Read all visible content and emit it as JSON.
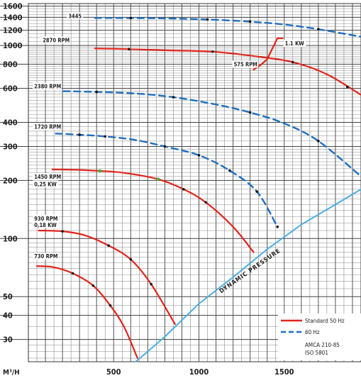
{
  "chart_data": {
    "type": "line",
    "title": "",
    "xlabel": "M³/H",
    "ylabel": "",
    "x_scale": "linear",
    "y_scale": "log",
    "xlim": [
      0,
      1950
    ],
    "ylim": [
      23,
      1650
    ],
    "x_ticks": [
      500,
      1000,
      1500
    ],
    "y_ticks": [
      30,
      40,
      50,
      100,
      200,
      300,
      400,
      600,
      800,
      1000,
      1200,
      1400,
      1600
    ],
    "grid": true,
    "legend_position": "bottom-right",
    "legend": [
      {
        "label": "Standard 50 Hz",
        "style": "solid",
        "color": "#e1251b"
      },
      {
        "label": "60 Hz",
        "style": "dashed",
        "color": "#1f6fbf"
      },
      {
        "label": "AMCA 210-85",
        "style": "text",
        "color": "#333333"
      },
      {
        "label": "ISO 5801",
        "style": "text",
        "color": "#333333"
      }
    ],
    "colors": {
      "standard": "#e1251b",
      "sixty_hz": "#1f6fbf",
      "dynamic": "#4aaee0",
      "point_dark": "#111111",
      "point_green": "#47b23a"
    },
    "series": [
      {
        "label": "3445",
        "style": "dashed",
        "color": "#1f6fbf",
        "x": [
          390,
          580,
          800,
          1050,
          1300,
          1500,
          1700,
          1950
        ],
        "y": [
          1390,
          1388,
          1382,
          1365,
          1330,
          1285,
          1215,
          1110
        ]
      },
      {
        "label": "2870 RPM",
        "style": "solid",
        "color": "#e1251b",
        "x": [
          390,
          590,
          800,
          1080,
          1330,
          1550,
          1750,
          1950
        ],
        "y": [
          965,
          958,
          945,
          930,
          880,
          820,
          710,
          555
        ]
      },
      {
        "label": "2380 RPM",
        "style": "dashed",
        "color": "#1f6fbf",
        "x": [
          205,
          400,
          620,
          850,
          1100,
          1300,
          1500,
          1700,
          1950
        ],
        "y": [
          580,
          575,
          565,
          540,
          495,
          450,
          395,
          320,
          210
        ]
      },
      {
        "label": "1720 RPM",
        "style": "dashed",
        "color": "#1f6fbf",
        "x": [
          160,
          300,
          450,
          620,
          800,
          1000,
          1180,
          1340,
          1460
        ],
        "y": [
          350,
          345,
          338,
          325,
          300,
          270,
          225,
          175,
          115
        ]
      },
      {
        "label": "1450 RPM",
        "style": "solid",
        "color": "#e1251b",
        "x": [
          140,
          280,
          420,
          560,
          760,
          910,
          1040,
          1200,
          1320
        ],
        "y": [
          228,
          227,
          224,
          219,
          203,
          180,
          154,
          115,
          85
        ]
      },
      {
        "label": "930 RPM",
        "style": "solid",
        "color": "#e1251b",
        "x": [
          60,
          200,
          330,
          470,
          600,
          720,
          860
        ],
        "y": [
          110,
          109,
          104,
          92,
          78,
          58,
          36
        ]
      },
      {
        "label": "730 RPM",
        "style": "solid",
        "color": "#e1251b",
        "x": [
          50,
          150,
          260,
          380,
          480,
          560,
          640
        ],
        "y": [
          72,
          71,
          66,
          57,
          45,
          35,
          24
        ]
      },
      {
        "label": "DYNAMIC PRESSURE",
        "style": "solid",
        "color": "#4aaee0",
        "x": [
          630,
          800,
          1000,
          1200,
          1400,
          1600,
          1800,
          1950
        ],
        "y": [
          23,
          31,
          46,
          63,
          88,
          118,
          150,
          180
        ]
      },
      {
        "label": "1.1 KW",
        "style": "solid",
        "color": "#e1251b",
        "x": [
          1320,
          1360,
          1400,
          1460,
          1490
        ],
        "y": [
          750,
          790,
          850,
          1090,
          1090
        ]
      }
    ],
    "markers_dark": [
      {
        "x": 600,
        "y": 1388
      },
      {
        "x": 1050,
        "y": 1365
      },
      {
        "x": 1300,
        "y": 1330
      },
      {
        "x": 1700,
        "y": 1215
      },
      {
        "x": 590,
        "y": 958
      },
      {
        "x": 1080,
        "y": 930
      },
      {
        "x": 1550,
        "y": 820
      },
      {
        "x": 1870,
        "y": 610
      },
      {
        "x": 400,
        "y": 575
      },
      {
        "x": 850,
        "y": 540
      },
      {
        "x": 1300,
        "y": 450
      },
      {
        "x": 1700,
        "y": 320
      },
      {
        "x": 300,
        "y": 345
      },
      {
        "x": 450,
        "y": 338
      },
      {
        "x": 800,
        "y": 300
      },
      {
        "x": 1000,
        "y": 270
      },
      {
        "x": 1180,
        "y": 225
      },
      {
        "x": 1340,
        "y": 175
      },
      {
        "x": 1460,
        "y": 115
      },
      {
        "x": 910,
        "y": 180
      },
      {
        "x": 1040,
        "y": 154
      },
      {
        "x": 200,
        "y": 109
      },
      {
        "x": 470,
        "y": 92
      },
      {
        "x": 600,
        "y": 78
      },
      {
        "x": 720,
        "y": 58
      },
      {
        "x": 260,
        "y": 66
      },
      {
        "x": 380,
        "y": 57
      },
      {
        "x": 480,
        "y": 45
      }
    ],
    "markers_green": [
      {
        "x": 420,
        "y": 224
      },
      {
        "x": 760,
        "y": 203
      }
    ],
    "annotations": [
      {
        "text": "3445",
        "x": 230,
        "y": 1390
      },
      {
        "text": "2870 RPM",
        "x": 80,
        "y": 1040
      },
      {
        "text": "1.1 KW",
        "x": 1500,
        "y": 1000
      },
      {
        "text": "575 RPM",
        "x": 1200,
        "y": 780
      },
      {
        "text": "2380 RPM",
        "x": 30,
        "y": 600
      },
      {
        "text": "1720 RPM",
        "x": 30,
        "y": 370
      },
      {
        "text": "1450 RPM",
        "x": 30,
        "y": 204
      },
      {
        "text": "0,25 KW",
        "x": 30,
        "y": 187
      },
      {
        "text": "930 RPM",
        "x": 30,
        "y": 124
      },
      {
        "text": "0,18 KW",
        "x": 30,
        "y": 115
      },
      {
        "text": "730 RPM",
        "x": 30,
        "y": 79
      }
    ],
    "dynamic_label": "DYNAMIC PRESSURE"
  }
}
